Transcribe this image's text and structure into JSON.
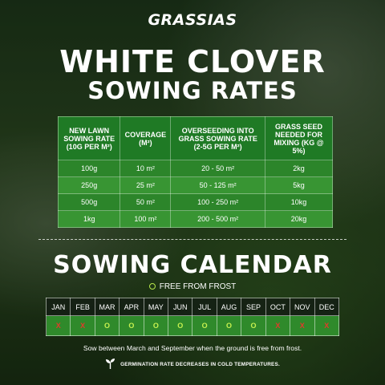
{
  "brand": "GRASSIAS",
  "title_line1": "WHITE CLOVER",
  "title_line2": "SOWING RATES",
  "rates_table": {
    "headers": [
      "NEW LAWN SOWING RATE (10g per m²)",
      "COVERAGE (m²)",
      "OVERSEEDING INTO GRASS SOWING RATE (2-5g per m²)",
      "GRASS SEED NEEDED FOR MIXING (kg @ 5%)"
    ],
    "rows": [
      [
        "100g",
        "10 m²",
        "20 - 50 m²",
        "2kg"
      ],
      [
        "250g",
        "25 m²",
        "50 - 125 m²",
        "5kg"
      ],
      [
        "500g",
        "50 m²",
        "100 - 250 m²",
        "10kg"
      ],
      [
        "1kg",
        "100 m²",
        "200 - 500 m²",
        "20kg"
      ]
    ]
  },
  "calendar": {
    "title": "SOWING CALENDAR",
    "legend": "FREE FROM FROST",
    "months": [
      "JAN",
      "FEB",
      "MAR",
      "APR",
      "MAY",
      "JUN",
      "JUL",
      "AUG",
      "SEP",
      "OCT",
      "NOV",
      "DEC"
    ],
    "marks": [
      "X",
      "X",
      "O",
      "O",
      "O",
      "O",
      "O",
      "O",
      "O",
      "X",
      "X",
      "X"
    ]
  },
  "note": "Sow between March and September when the ground is free from frost.",
  "germination_note": "GERMINATION RATE DECREASES IN COLD TEMPERATURES.",
  "colors": {
    "table_green": "#2f8a2b",
    "cross_red": "#e23a2a",
    "circle_lime": "#c6f04f"
  }
}
